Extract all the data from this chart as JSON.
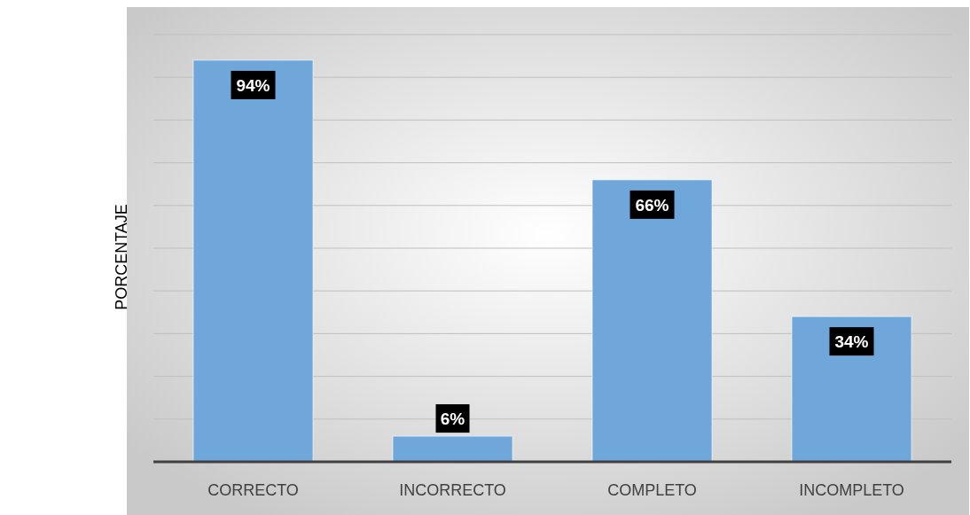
{
  "chart_data": {
    "type": "bar",
    "ylabel": "PORCENTAJE",
    "categories": [
      "CORRECTO",
      "INCORRECTO",
      "COMPLETO",
      "INCOMPLETO"
    ],
    "values": [
      94,
      6,
      66,
      34
    ],
    "color": "#70a7da",
    "value_labels": [
      "94%",
      "6%",
      "66%",
      "34%"
    ],
    "ylim": [
      0,
      100
    ],
    "yticks": [
      {
        "value": 0,
        "label": null
      },
      {
        "value": 10,
        "label": null
      },
      {
        "value": 20,
        "label": null
      },
      {
        "value": 30,
        "label": null
      },
      {
        "value": 40,
        "label": null
      },
      {
        "value": 50,
        "label": null
      },
      {
        "value": 60,
        "label": null
      },
      {
        "value": 70,
        "label": null
      },
      {
        "value": 80,
        "label": null
      },
      {
        "value": 90,
        "label": null
      },
      {
        "value": 100,
        "label": null
      }
    ],
    "tick_labels": "x",
    "grid": "y"
  }
}
